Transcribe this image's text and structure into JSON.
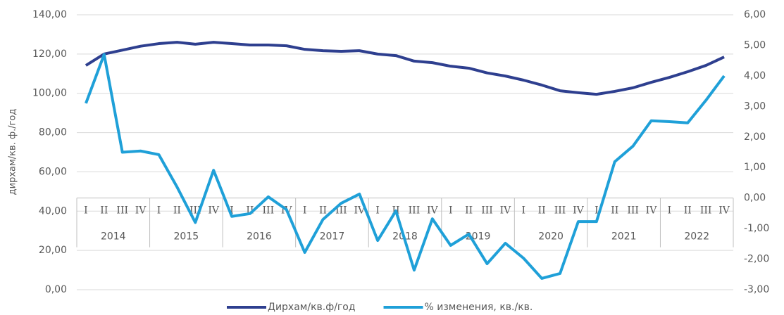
{
  "chart_data": {
    "type": "line",
    "y_label": "дирхам/кв. ф./год",
    "categories": [
      "I",
      "II",
      "III",
      "IV",
      "I",
      "II",
      "III",
      "IV",
      "I",
      "II",
      "III",
      "IV",
      "I",
      "II",
      "III",
      "IV",
      "I",
      "II",
      "III",
      "IV",
      "I",
      "II",
      "III",
      "IV",
      "I",
      "II",
      "III",
      "IV",
      "I",
      "II",
      "III",
      "IV",
      "I",
      "II",
      "III",
      "IV"
    ],
    "year_groups": [
      "2014",
      "2015",
      "2016",
      "2017",
      "2018",
      "2019",
      "2020",
      "2021",
      "2022"
    ],
    "series": [
      {
        "name": "Дирхам/кв.ф/год",
        "color": "#2e3f8f",
        "values": [
          114.2,
          120,
          122,
          124,
          125.3,
          126,
          125,
          126,
          125.3,
          124.6,
          124.6,
          124.2,
          122.4,
          121.7,
          121.4,
          121.7,
          120,
          119.2,
          116.4,
          115.6,
          113.8,
          112.8,
          110.4,
          108.8,
          106.7,
          104.2,
          101.3,
          100.3,
          99.5,
          101,
          102.8,
          105.6,
          108.1,
          111,
          114.2,
          118.5
        ]
      },
      {
        "name": "% изменения, кв./кв.",
        "color": "#1fa0d8",
        "axis": "y2",
        "values": [
          3.1,
          4.7,
          1.5,
          1.54,
          1.42,
          0.36,
          -0.8,
          0.91,
          -0.6,
          -0.51,
          0.04,
          -0.38,
          -1.78,
          -0.7,
          -0.17,
          0.13,
          -1.39,
          -0.42,
          -2.36,
          -0.68,
          -1.55,
          -1.18,
          -2.15,
          -1.48,
          -1.97,
          -2.63,
          -2.47,
          -0.77,
          -0.77,
          1.19,
          1.7,
          2.53,
          2.5,
          2.46,
          3.2,
          4.0
        ]
      }
    ],
    "ylim": [
      0,
      140
    ],
    "yticks": [
      {
        "value": 0,
        "label": "0,00"
      },
      {
        "value": 20,
        "label": "20,00"
      },
      {
        "value": 40,
        "label": "40,00"
      },
      {
        "value": 60,
        "label": "60,00"
      },
      {
        "value": 80,
        "label": "80,00"
      },
      {
        "value": 100,
        "label": "100,00"
      },
      {
        "value": 120,
        "label": "120,00"
      },
      {
        "value": 140,
        "label": "140,00"
      }
    ],
    "y2lim": [
      -3,
      6
    ],
    "y2ticks": [
      {
        "value": -3,
        "label": "-3,00"
      },
      {
        "value": -2,
        "label": "-2,00"
      },
      {
        "value": -1,
        "label": "-1,00"
      },
      {
        "value": 0,
        "label": "0,00"
      },
      {
        "value": 1,
        "label": "1,00"
      },
      {
        "value": 2,
        "label": "2,00"
      },
      {
        "value": 3,
        "label": "3,00"
      },
      {
        "value": 4,
        "label": "4,00"
      },
      {
        "value": 5,
        "label": "5,00"
      },
      {
        "value": 6,
        "label": "6,00"
      }
    ],
    "grid": true,
    "legend": "bottom"
  }
}
